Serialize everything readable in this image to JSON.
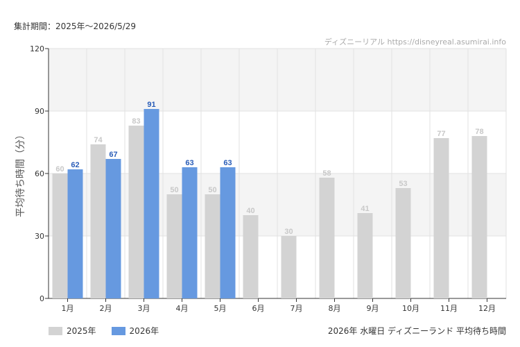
{
  "header": {
    "period_text": "集計期間：2025年～2026/5/29",
    "credit_text": "ディズニーリアル https://disneyreal.asumirai.info"
  },
  "footer": {
    "title": "2026年 水曜日 ディズニーランド 平均待ち時間"
  },
  "colors": {
    "series_2025": "#d3d3d3",
    "series_2026": "#6699e0",
    "label_2025": "#c8c8c8",
    "label_2026": "#2a5db8",
    "band": "#f4f4f4",
    "grid": "#e2e2e2"
  },
  "chart_data": {
    "type": "bar",
    "categories": [
      "1月",
      "2月",
      "3月",
      "4月",
      "5月",
      "6月",
      "7月",
      "8月",
      "9月",
      "10月",
      "11月",
      "12月"
    ],
    "series": [
      {
        "name": "2025年",
        "values": [
          60,
          74,
          83,
          50,
          50,
          40,
          30,
          58,
          41,
          53,
          77,
          78
        ]
      },
      {
        "name": "2026年",
        "values": [
          62,
          67,
          91,
          63,
          63,
          null,
          null,
          null,
          null,
          null,
          null,
          null
        ]
      }
    ],
    "ylabel": "平均待ち時間（分）",
    "ylim": [
      0,
      120
    ],
    "yticks": [
      0,
      30,
      60,
      90,
      120
    ],
    "grid": true,
    "legend_position": "bottom-left"
  }
}
